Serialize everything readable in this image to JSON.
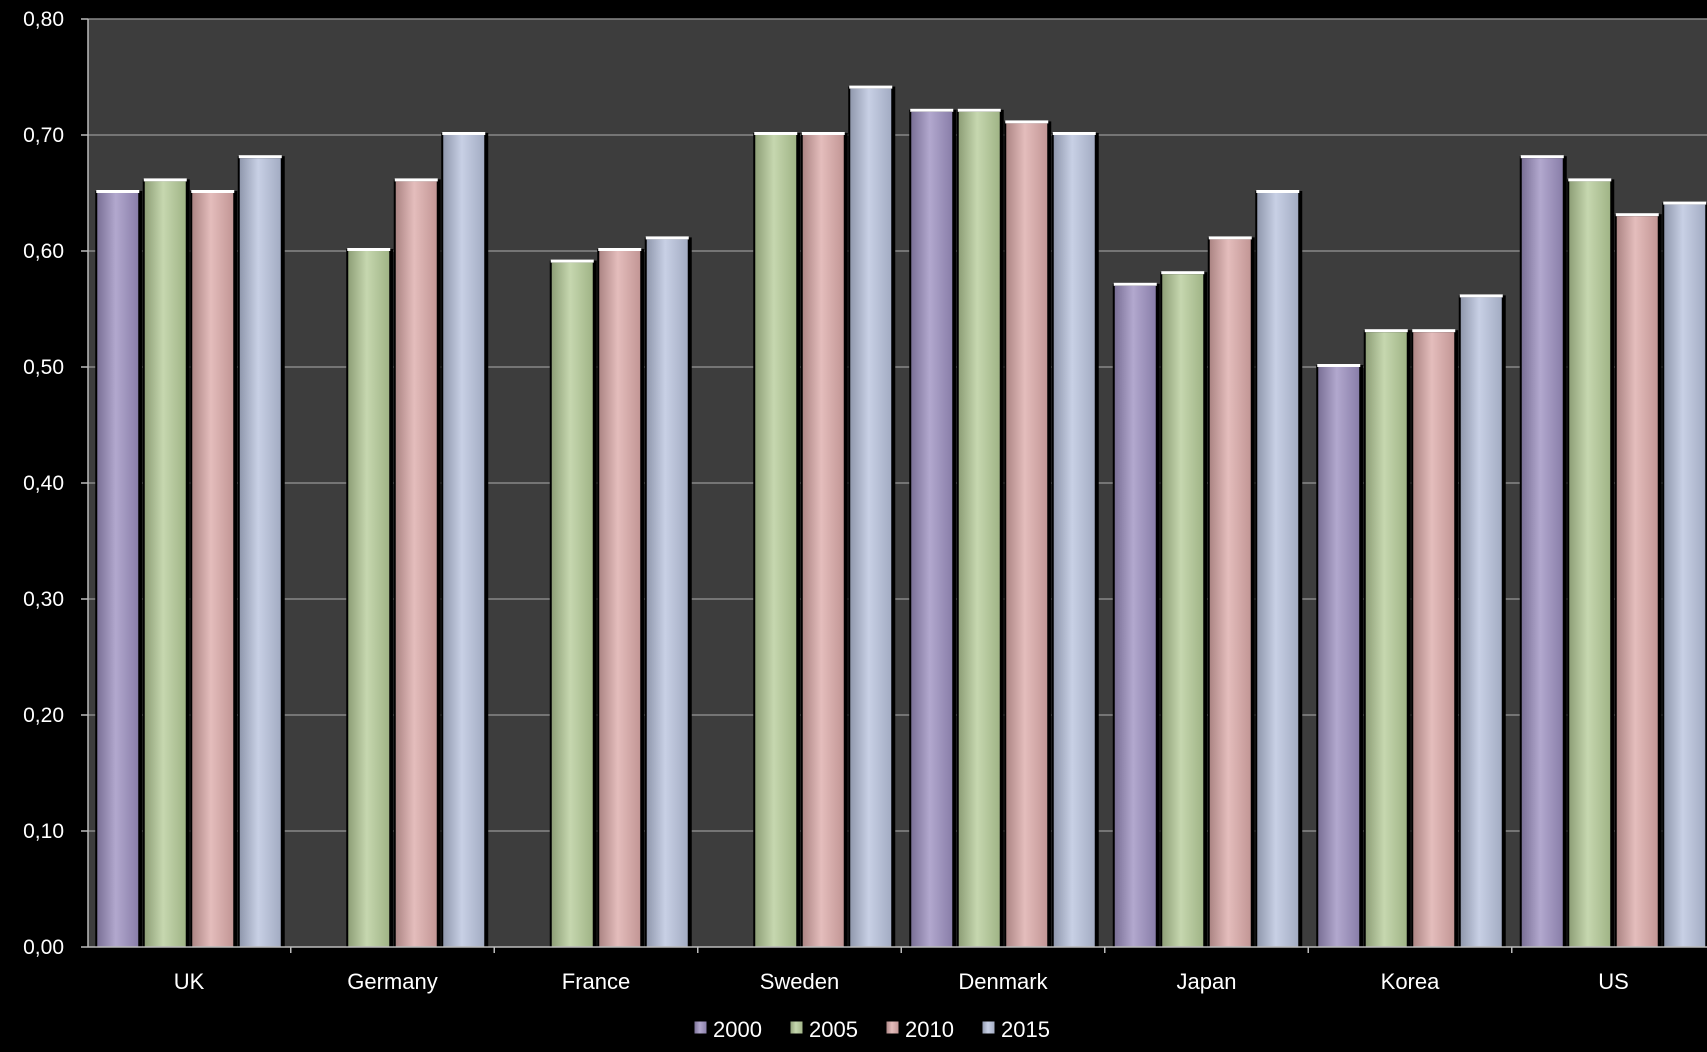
{
  "chart_data": {
    "type": "bar",
    "title": "",
    "xlabel": "",
    "ylabel": "",
    "ylim": [
      0,
      0.8
    ],
    "yticks": [
      "0,00",
      "0,10",
      "0,20",
      "0,30",
      "0,40",
      "0,50",
      "0,60",
      "0,70",
      "0,80"
    ],
    "grid": true,
    "legend_position": "bottom",
    "categories": [
      "UK",
      "Germany",
      "France",
      "Sweden",
      "Denmark",
      "Japan",
      "Korea",
      "US"
    ],
    "series": [
      {
        "name": "2000",
        "color": "#9c8fc0",
        "values": [
          0.65,
          null,
          null,
          null,
          0.72,
          0.57,
          0.5,
          0.68
        ]
      },
      {
        "name": "2005",
        "color": "#b6cc98",
        "values": [
          0.66,
          0.6,
          0.59,
          0.7,
          0.72,
          0.58,
          0.53,
          0.66
        ]
      },
      {
        "name": "2010",
        "color": "#ddaaa9",
        "values": [
          0.65,
          0.66,
          0.6,
          0.7,
          0.71,
          0.61,
          0.53,
          0.63
        ]
      },
      {
        "name": "2015",
        "color": "#b9c3de",
        "values": [
          0.68,
          0.7,
          0.61,
          0.74,
          0.7,
          0.65,
          0.56,
          0.64
        ]
      }
    ]
  }
}
